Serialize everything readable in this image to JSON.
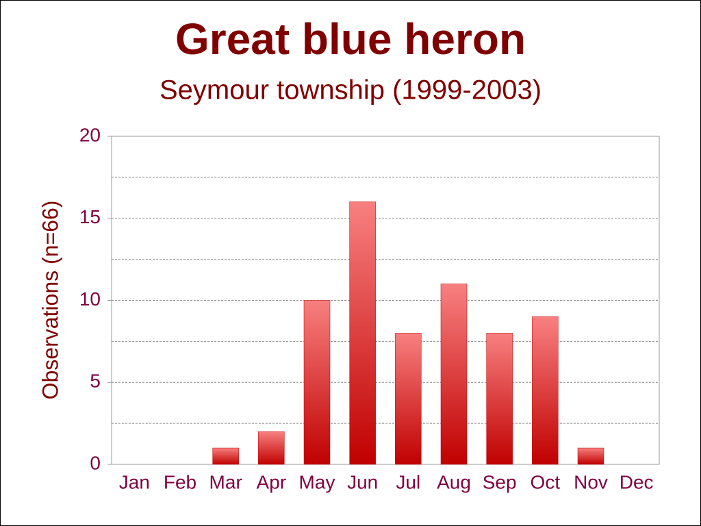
{
  "chart_data": {
    "type": "bar",
    "title": "Great blue heron",
    "subtitle": "Seymour township (1999-2003)",
    "y_label": "Observations (n=66)",
    "categories": [
      "Jan",
      "Feb",
      "Mar",
      "Apr",
      "May",
      "Jun",
      "Jul",
      "Aug",
      "Sep",
      "Oct",
      "Nov",
      "Dec"
    ],
    "values": [
      0,
      0,
      1,
      2,
      10,
      16,
      8,
      11,
      8,
      9,
      1,
      0
    ],
    "color": "#c00000",
    "ylim": [
      0,
      20
    ],
    "yticks": [
      0,
      5,
      10,
      15,
      20
    ],
    "yminorticks": [
      2.5,
      7.5,
      12.5,
      17.5
    ],
    "grid": true
  }
}
